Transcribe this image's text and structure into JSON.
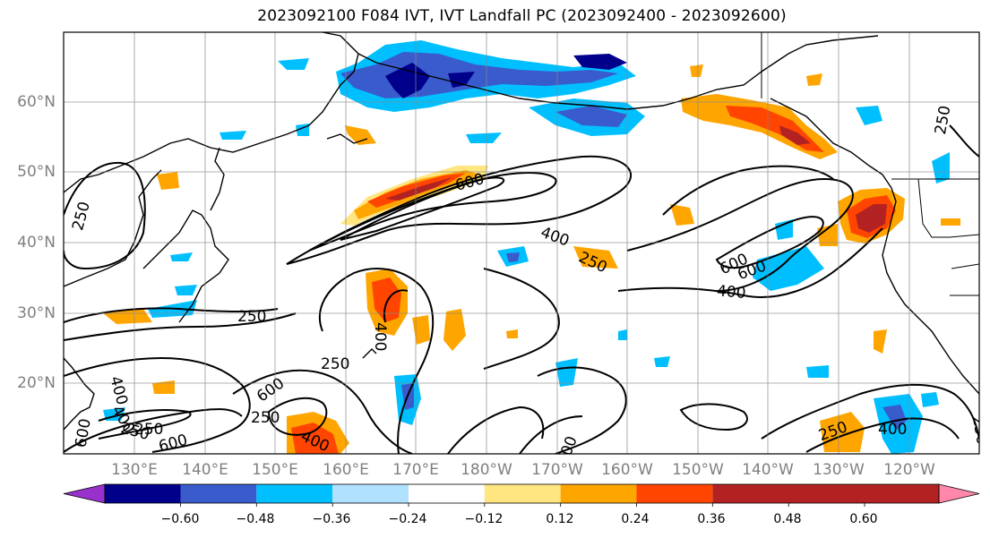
{
  "title": "2023092100 F084 IVT, IVT Landfall PC (2023092400 - 2023092600)",
  "lat_labels": [
    "60°N",
    "50°N",
    "40°N",
    "30°N",
    "20°N"
  ],
  "lon_labels": [
    "130°E",
    "140°E",
    "150°E",
    "160°E",
    "170°E",
    "180°W",
    "170°W",
    "160°W",
    "150°W",
    "140°W",
    "130°W",
    "120°W"
  ],
  "colorbar": {
    "colors": [
      "#9932cc",
      "#00008b",
      "#3a5bcc",
      "#00bfff",
      "#b0e2ff",
      "#ffffff",
      "#ffe680",
      "#ffa500",
      "#ff4500",
      "#b22222",
      "#ff88aa"
    ],
    "ticks": [
      "−0.60",
      "−0.48",
      "−0.36",
      "−0.24",
      "−0.12",
      "0.12",
      "0.24",
      "0.36",
      "0.48",
      "0.60"
    ]
  },
  "contour_labels": [
    "600",
    "400",
    "250",
    "250",
    "600",
    "600",
    "400",
    "250",
    "250",
    "400",
    "250",
    "400",
    "250",
    "600",
    "600",
    "250",
    "400",
    "250",
    "600",
    "400",
    "250",
    "400",
    "00",
    "250"
  ]
}
